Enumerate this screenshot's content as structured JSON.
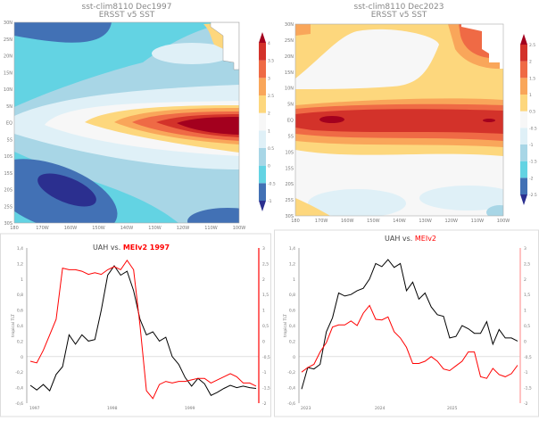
{
  "maps": [
    {
      "title1": "sst-clim8110 Dec1997",
      "title2": "ERSST v5 SST",
      "lat_labels": [
        "30N",
        "25N",
        "20N",
        "15N",
        "10N",
        "5N",
        "EQ",
        "5S",
        "10S",
        "15S",
        "20S",
        "25S",
        "30S"
      ],
      "lon_labels": [
        "180",
        "170W",
        "160W",
        "150W",
        "140W",
        "130W",
        "120W",
        "110W",
        "100W"
      ],
      "colorbar_labels": [
        "-1",
        "-0.5",
        "0",
        "0.5",
        "1",
        "2",
        "2.5",
        "3",
        "3.5",
        "4"
      ],
      "colorbar_colors": [
        "#2b2f8f",
        "#4271b5",
        "#63d3e3",
        "#a8d6e6",
        "#dff0f7",
        "#f7f7f7",
        "#fdd77d",
        "#f9a65a",
        "#ef6a45",
        "#d3322a",
        "#a3001e"
      ]
    },
    {
      "title1": "sst-clim8110 Dec2023",
      "title2": "ERSST v5 SST",
      "lat_labels": [
        "30N",
        "25N",
        "20N",
        "15N",
        "10N",
        "5N",
        "EQ",
        "5S",
        "10S",
        "15S",
        "20S",
        "25S",
        "30S"
      ],
      "lon_labels": [
        "180",
        "170W",
        "160W",
        "150W",
        "140W",
        "130W",
        "120W",
        "110W",
        "100W"
      ],
      "colorbar_labels": [
        "-2.5",
        "-2",
        "-1.5",
        "-1",
        "-0.5",
        "0.5",
        "1",
        "1.5",
        "2",
        "2.5"
      ],
      "colorbar_colors": [
        "#2b2f8f",
        "#4271b5",
        "#63d3e3",
        "#a8d6e6",
        "#dff0f7",
        "#f7f7f7",
        "#fdd77d",
        "#f9a65a",
        "#ef6a45",
        "#d3322a",
        "#a3001e"
      ]
    }
  ],
  "chart_data": [
    {
      "type": "line",
      "title_black": "UAH  vs.",
      "title_red": "MEIv2 1997",
      "ylabel": "tropical TLT",
      "ylim": [
        -0.6,
        1.4
      ],
      "y2lim": [
        -2,
        3
      ],
      "yticks": [
        "1,4",
        "1,2",
        "1",
        "0,8",
        "0,6",
        "0,4",
        "0,2",
        "0",
        "-0,2",
        "-0,4",
        "-0,6"
      ],
      "y2ticks": [
        "3",
        "2,5",
        "2",
        "1,5",
        "1",
        "0,5",
        "0",
        "-0,5",
        "-1",
        "-1,5",
        "-2"
      ],
      "xticks": [
        "1997",
        "1998",
        "1999"
      ],
      "series": [
        {
          "axis": "left",
          "color": "#000000",
          "values": [
            -0.37,
            -0.43,
            -0.36,
            -0.44,
            -0.23,
            -0.13,
            0.28,
            0.16,
            0.28,
            0.2,
            0.22,
            0.6,
            1.05,
            1.17,
            1.05,
            1.1,
            0.85,
            0.48,
            0.28,
            0.32,
            0.2,
            0.25,
            0,
            -0.1,
            -0.27,
            -0.38,
            -0.28,
            -0.35,
            -0.5,
            -0.46,
            -0.41,
            -0.37,
            -0.4,
            -0.38,
            -0.4,
            -0.41
          ]
        },
        {
          "axis": "right",
          "color": "#ff0000",
          "values": [
            -0.65,
            -0.7,
            -0.3,
            0.2,
            0.7,
            2.35,
            2.3,
            2.3,
            2.25,
            2.15,
            2.2,
            2.15,
            2.3,
            2.4,
            2.3,
            2.6,
            2.3,
            0.5,
            -1.6,
            -1.85,
            -1.4,
            -1.3,
            -1.35,
            -1.3,
            -1.3,
            -1.25,
            -1.2,
            -1.2,
            -1.35,
            -1.25,
            -1.15,
            -1.05,
            -1.15,
            -1.35,
            -1.35,
            -1.45
          ]
        }
      ]
    },
    {
      "type": "line",
      "title_black": "UAH vs.",
      "title_red": "MEIv2",
      "ylabel": "tropical TLT",
      "ylim": [
        -0.6,
        1.4
      ],
      "y2lim": [
        -2,
        3
      ],
      "yticks": [
        "1,4",
        "1,2",
        "1",
        "0,8",
        "0,6",
        "0,4",
        "0,2",
        "0",
        "-0,2",
        "-0,4",
        "-0,6"
      ],
      "y2ticks": [
        "3",
        "2,5",
        "2",
        "1,5",
        "1",
        "0,5",
        "0",
        "-0,5",
        "-1",
        "-1,5",
        "-2"
      ],
      "xticks": [
        "2023",
        "2024",
        "2025"
      ],
      "series": [
        {
          "axis": "left",
          "color": "#000000",
          "values": [
            -0.42,
            -0.14,
            -0.16,
            -0.1,
            0.32,
            0.5,
            0.82,
            0.78,
            0.8,
            0.85,
            0.88,
            1.0,
            1.2,
            1.16,
            1.25,
            1.15,
            1.2,
            0.85,
            0.96,
            0.74,
            0.82,
            0.64,
            0.54,
            0.52,
            0.24,
            0.26,
            0.4,
            0.36,
            0.3,
            0.3,
            0.45,
            0.16,
            0.35,
            0.24,
            0.24,
            0.2
          ]
        },
        {
          "axis": "right",
          "color": "#ff0000",
          "values": [
            -1.0,
            -0.85,
            -0.75,
            -0.35,
            -0.05,
            0.45,
            0.52,
            0.52,
            0.65,
            0.5,
            0.9,
            1.15,
            0.7,
            0.68,
            0.78,
            0.3,
            0.1,
            -0.2,
            -0.72,
            -0.72,
            -0.65,
            -0.5,
            -0.65,
            -0.9,
            -0.95,
            -0.8,
            -0.65,
            -0.35,
            -0.35,
            -1.15,
            -1.2,
            -0.88,
            -1.08,
            -1.15,
            -1.05,
            -0.78
          ]
        }
      ]
    }
  ]
}
